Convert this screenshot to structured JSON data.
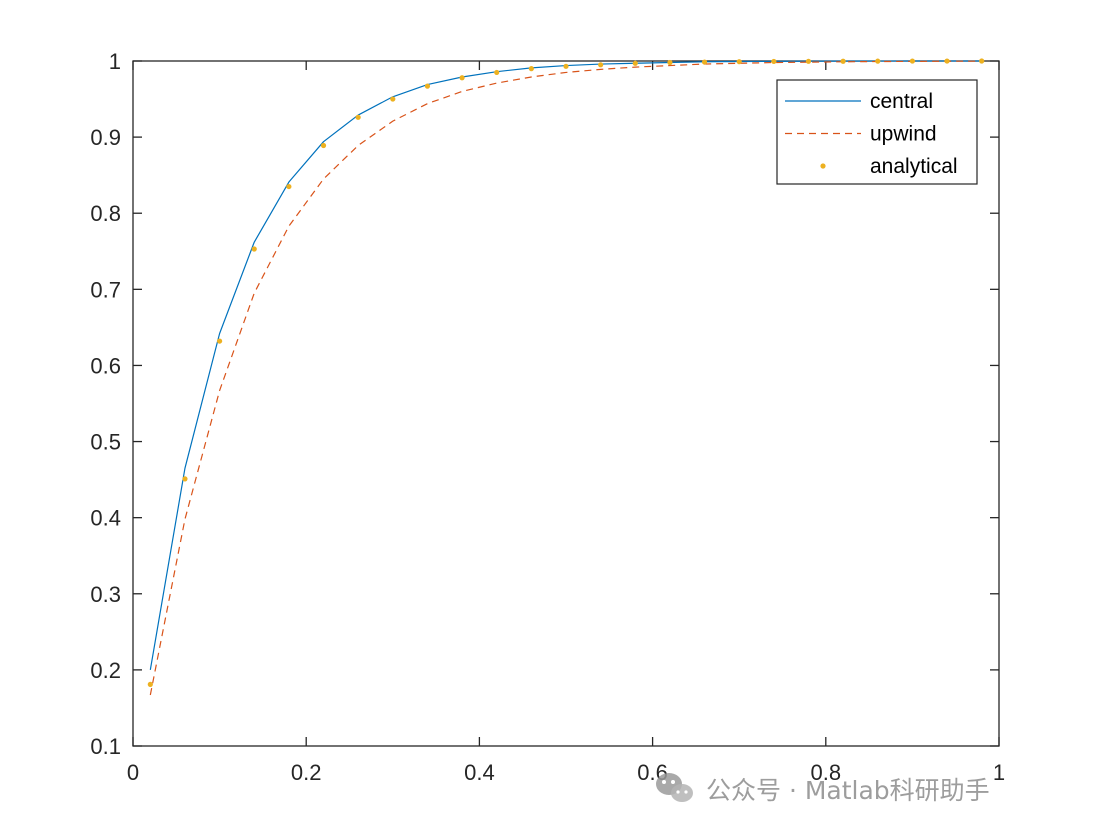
{
  "chart_data": {
    "type": "line",
    "title": "",
    "xlabel": "",
    "ylabel": "",
    "xlim": [
      0,
      1
    ],
    "ylim": [
      0.1,
      1
    ],
    "xticks": [
      0,
      0.2,
      0.4,
      0.6,
      0.8,
      1
    ],
    "yticks": [
      0.1,
      0.2,
      0.3,
      0.4,
      0.5,
      0.6,
      0.7,
      0.8,
      0.9,
      1
    ],
    "xtick_labels": [
      "0",
      "0.2",
      "0.4",
      "0.6",
      "0.8",
      "1"
    ],
    "ytick_labels": [
      "0.1",
      "0.2",
      "0.3",
      "0.4",
      "0.5",
      "0.6",
      "0.7",
      "0.8",
      "0.9",
      "1"
    ],
    "grid": false,
    "box": true,
    "legend_placement": "top-right",
    "x": [
      0.02,
      0.06,
      0.1,
      0.14,
      0.18,
      0.22,
      0.26,
      0.3,
      0.34,
      0.38,
      0.42,
      0.46,
      0.5,
      0.54,
      0.58,
      0.62,
      0.66,
      0.7,
      0.74,
      0.78,
      0.82,
      0.86,
      0.9,
      0.94,
      0.98
    ],
    "series": [
      {
        "name": "central",
        "style": "solid-line",
        "color": "#0072BD",
        "values": [
          0.2,
          0.465,
          0.642,
          0.762,
          0.841,
          0.894,
          0.929,
          0.953,
          0.969,
          0.979,
          0.986,
          0.991,
          0.994,
          0.996,
          0.997,
          0.998,
          0.999,
          0.9993,
          0.9995,
          0.9997,
          0.9998,
          0.9999,
          1.0,
          1.0,
          1.0
        ]
      },
      {
        "name": "upwind",
        "style": "dashed-line",
        "color": "#D95319",
        "values": [
          0.167,
          0.398,
          0.567,
          0.695,
          0.783,
          0.845,
          0.889,
          0.921,
          0.944,
          0.96,
          0.971,
          0.979,
          0.985,
          0.989,
          0.992,
          0.994,
          0.996,
          0.997,
          0.998,
          0.9985,
          0.999,
          0.9993,
          0.9995,
          0.9997,
          0.9998
        ]
      },
      {
        "name": "analytical",
        "style": "dots",
        "color": "#EDB120",
        "values": [
          0.181,
          0.451,
          0.632,
          0.753,
          0.835,
          0.889,
          0.926,
          0.95,
          0.967,
          0.978,
          0.985,
          0.99,
          0.993,
          0.995,
          0.997,
          0.998,
          0.9986,
          0.9991,
          0.9994,
          0.9996,
          0.9997,
          0.9998,
          0.9999,
          0.9999,
          1.0
        ]
      }
    ]
  },
  "watermark": {
    "text": "公众号 · Matlab科研助手",
    "icon": "wechat-icon"
  },
  "colors": {
    "axis": "#262626",
    "background": "#ffffff",
    "watermark": "#8c8c8c"
  }
}
